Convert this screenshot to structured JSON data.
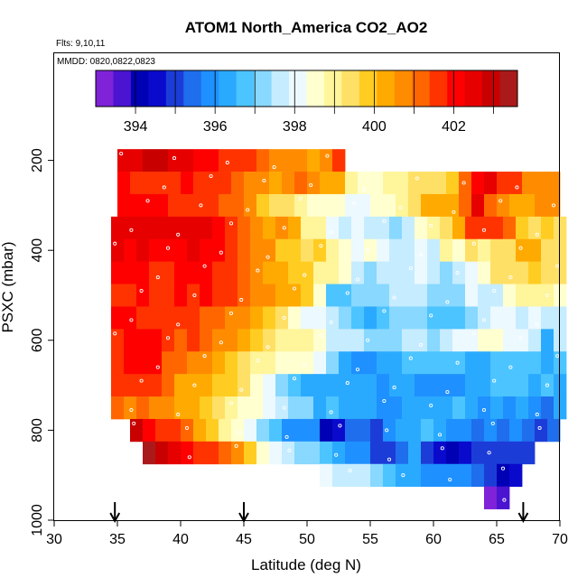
{
  "chart_data": {
    "type": "heatmap",
    "title": "ATOM1 North_America CO2_AO2",
    "annotations": [
      "Flts: 9,10,11",
      "MMDD: 0820,0822,0823"
    ],
    "xlabel": "Latitude (deg N)",
    "ylabel": "PSXC (mbar)",
    "xlim": [
      30,
      70
    ],
    "ylim": [
      1000,
      0
    ],
    "x_ticks": [
      30,
      35,
      40,
      45,
      50,
      55,
      60,
      65,
      70
    ],
    "x_tick_labels": [
      "30",
      "35",
      "40",
      "45",
      "50",
      "55",
      "60",
      "65",
      "70"
    ],
    "y_ticks": [
      200,
      400,
      600,
      800,
      1000
    ],
    "y_tick_labels": [
      "200",
      "400",
      "600",
      "800",
      "1000"
    ],
    "colorbar": {
      "range": [
        393,
        403.6
      ],
      "ticks": [
        394,
        396,
        398,
        400,
        402
      ],
      "tick_labels": [
        "394",
        "396",
        "398",
        "400",
        "402"
      ],
      "colors": [
        "#7f22d8",
        "#4a14d0",
        "#0000b4",
        "#0a0acd",
        "#1c3cd8",
        "#1e6eee",
        "#1e90ff",
        "#2aaaff",
        "#4cc4ff",
        "#88d8ff",
        "#c6ecff",
        "#ecf9ff",
        "#ffffd0",
        "#fff59a",
        "#ffe066",
        "#ffcc22",
        "#ffaa00",
        "#ff8c00",
        "#ff6600",
        "#ff3300",
        "#ff0000",
        "#e60000",
        "#c80000",
        "#aa1a1a"
      ]
    },
    "marker_latitudes": [
      34.8,
      45,
      67.1
    ],
    "x_bin_width": 1,
    "y_bin_height": 50,
    "rows": [
      {
        "p": 200,
        "x0": 35,
        "v": [
          402.5,
          402.6,
          402.8,
          402.8,
          402.5,
          402.3,
          402.2,
          402.0,
          401.8,
          401.6,
          401.4,
          401.0,
          400.8,
          400.6,
          400.6,
          400.4,
          400.6,
          401.4,
          null
        ]
      },
      {
        "p": 250,
        "x0": 35,
        "v": [
          402.2,
          401.8,
          401.6,
          401.5,
          401.8,
          401.9,
          401.7,
          401.4,
          401.6,
          401.0,
          400.8,
          400.6,
          400.4,
          400.6,
          401.0,
          400.8,
          400.4,
          400.2,
          399.0,
          398.4,
          398.6,
          398.9,
          399.0,
          399.2,
          399.6,
          399.4,
          399.9,
          401.2,
          402.2,
          402.6,
          401.8,
          401.4,
          400.8,
          400.6,
          400.8
        ]
      },
      {
        "p": 300,
        "x0": 35,
        "v": [
          401.9,
          402.0,
          402.1,
          402.0,
          401.6,
          401.6,
          401.5,
          401.4,
          401.2,
          401.0,
          400.8,
          400.0,
          399.6,
          399.2,
          398.8,
          398.4,
          398.4,
          398.3,
          398.2,
          398.0,
          398.4,
          398.6,
          398.8,
          399.5,
          400.2,
          400.2,
          400.4,
          401.3,
          402.5,
          401.2,
          400.8,
          400.4,
          400.2,
          400.6,
          400.8
        ]
      },
      {
        "p": 350,
        "x0": 34.5,
        "v": [
          402.3,
          402.4,
          402.4,
          402.5,
          402.7,
          402.5,
          402.6,
          402.3,
          402.0,
          401.6,
          401.3,
          400.7,
          400.4,
          400.6,
          400.2,
          399.0,
          398.8,
          398.0,
          397.8,
          398.0,
          397.8,
          397.6,
          397.4,
          397.6,
          398.4,
          399.0,
          399.5,
          400.1,
          401.4,
          401.6,
          401.6,
          401.0,
          400.0,
          399.6,
          399.8,
          399.4
        ]
      },
      {
        "p": 400,
        "x0": 34.5,
        "v": [
          402.4,
          402.2,
          402.3,
          402.0,
          402.1,
          402.1,
          402.3,
          402.2,
          401.9,
          401.5,
          401.3,
          400.6,
          400.7,
          400.0,
          399.8,
          399.6,
          399.8,
          399.0,
          398.5,
          398.2,
          398.6,
          398.2,
          397.8,
          397.8,
          398.0,
          397.8,
          398.8,
          398.6,
          399.5,
          398.9,
          399.6,
          399.5,
          400.4,
          400.4,
          399.4,
          399.6
        ]
      },
      {
        "p": 450,
        "x0": 34.5,
        "v": [
          401.9,
          401.9,
          402.0,
          401.7,
          401.7,
          402.2,
          402.0,
          402.1,
          401.7,
          401.6,
          401.3,
          400.7,
          400.4,
          400.4,
          400.0,
          399.8,
          398.8,
          399.0,
          398.4,
          397.8,
          397.4,
          397.5,
          397.8,
          397.8,
          398.0,
          397.6,
          397.4,
          397.6,
          398.0,
          398.4,
          399.2,
          399.6,
          399.4,
          399.8,
          399.5,
          399.2
        ]
      },
      {
        "p": 500,
        "x0": 34.5,
        "v": [
          401.6,
          401.8,
          401.9,
          401.6,
          401.8,
          402.0,
          401.8,
          401.9,
          401.6,
          401.4,
          401.0,
          400.6,
          400.7,
          400.4,
          400.1,
          399.8,
          398.4,
          396.9,
          396.8,
          397.0,
          397.1,
          397.3,
          397.8,
          397.8,
          397.6,
          397.3,
          397.2,
          397.2,
          398.0,
          397.8,
          397.6,
          398.6,
          399.0,
          398.8,
          398.8,
          398.6
        ]
      },
      {
        "p": 550,
        "x0": 34.5,
        "v": [
          402.0,
          401.9,
          401.8,
          401.6,
          401.5,
          401.4,
          401.5,
          401.0,
          401.2,
          400.9,
          400.9,
          400.4,
          400.0,
          399.3,
          398.6,
          398.2,
          398.0,
          397.6,
          397.0,
          396.7,
          396.5,
          396.8,
          397.2,
          397.4,
          397.2,
          396.8,
          396.7,
          396.7,
          397.0,
          397.5,
          398.2,
          398.0,
          397.8,
          398.0,
          397.6,
          397.5
        ]
      },
      {
        "p": 600,
        "x0": 34.5,
        "v": [
          401.8,
          402.0,
          402.1,
          402.0,
          401.4,
          401.3,
          401.6,
          401.3,
          400.9,
          400.6,
          400.4,
          399.8,
          399.4,
          399.1,
          398.9,
          398.8,
          398.5,
          397.8,
          397.6,
          397.5,
          397.2,
          397.3,
          397.4,
          397.6,
          397.6,
          397.4,
          397.6,
          397.9,
          398.1,
          398.3,
          398.3,
          398.0,
          397.9,
          397.8,
          396.4,
          397.6
        ]
      },
      {
        "p": 650,
        "x0": 34.5,
        "v": [
          401.8,
          401.9,
          401.9,
          402.0,
          401.2,
          401.0,
          400.8,
          400.7,
          400.3,
          400.0,
          399.4,
          399.1,
          398.9,
          398.5,
          398.6,
          398.4,
          398.0,
          397.0,
          396.3,
          396.0,
          396.0,
          396.3,
          396.4,
          396.6,
          396.8,
          396.8,
          396.7,
          396.8,
          396.4,
          396.5,
          396.6,
          396.8,
          396.8,
          396.9,
          396.5,
          396.6
        ]
      },
      {
        "p": 700,
        "x0": 34.5,
        "v": [
          401.6,
          401.8,
          401.4,
          401.5,
          401.0,
          400.5,
          400.3,
          400.2,
          400.0,
          399.8,
          399.3,
          398.6,
          397.9,
          397.2,
          396.8,
          396.5,
          396.3,
          396.2,
          396.1,
          396.2,
          396.1,
          396.0,
          396.2,
          396.3,
          396.0,
          395.9,
          395.8,
          395.8,
          396.4,
          396.5,
          396.8,
          396.8,
          396.7,
          396.2,
          396.8,
          396.2
        ]
      },
      {
        "p": 750,
        "x0": 34.5,
        "v": [
          401.2,
          400.9,
          401.2,
          400.8,
          400.6,
          400.1,
          400.4,
          400.0,
          399.3,
          399.1,
          398.7,
          398.4,
          398.0,
          397.6,
          397.4,
          397.1,
          396.5,
          396.6,
          396.4,
          396.3,
          396.3,
          395.8,
          396.0,
          396.2,
          396.4,
          396.2,
          396.5,
          396.6,
          396.2,
          396.0,
          396.1,
          396.0,
          396.2,
          396.0,
          395.6,
          396.4
        ]
      },
      {
        "p": 800,
        "x0": 36,
        "v": [
          403.1,
          402.0,
          401.8,
          401.5,
          401.0,
          400.3,
          399.8,
          399.0,
          398.5,
          398.0,
          397.4,
          396.6,
          396.0,
          396.0,
          396.0,
          394.0,
          394.6,
          395.4,
          395.5,
          395.0,
          395.8,
          396.2,
          396.5,
          396.6,
          396.1,
          395.8,
          395.8,
          395.6,
          395.8,
          395.4,
          395.7,
          395.5,
          395.2,
          395.4
        ]
      },
      {
        "p": 850,
        "x0": 37,
        "v": [
          403.4,
          402.8,
          402.6,
          402.0,
          401.8,
          401.6,
          401.2,
          400.6,
          399.8,
          398.4,
          398.0,
          397.5,
          397.2,
          397.0,
          396.8,
          396.5,
          396.0,
          395.8,
          395.2,
          395.0,
          395.4,
          396.2,
          395.2,
          394.6,
          394.2,
          394.4,
          395.0,
          395.0,
          395.2,
          395.0,
          395.0
        ]
      },
      {
        "p": 900,
        "x0": 51,
        "v": [
          398.0,
          397.8,
          397.6,
          397.6,
          397.0,
          396.8,
          396.5,
          396.2,
          396.0,
          396.0,
          396.0,
          395.8,
          395.4,
          395.0,
          394.0,
          394.4
        ]
      },
      {
        "p": 950,
        "x0": 64,
        "v": [
          393.4,
          393.5
        ]
      }
    ]
  }
}
